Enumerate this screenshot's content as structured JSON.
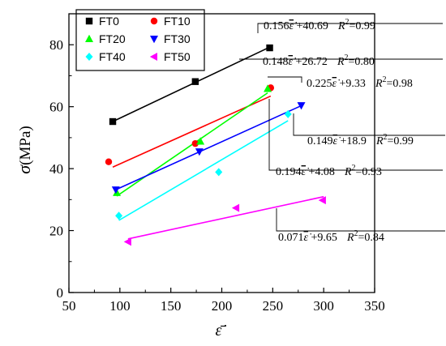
{
  "chart_data": {
    "type": "scatter",
    "xlabel": "ε̇̄",
    "ylabel_symbol": "σ",
    "ylabel_unit": "(MPa)",
    "xlim": [
      50,
      350
    ],
    "ylim": [
      0,
      90
    ],
    "xticks": [
      "50",
      "100",
      "150",
      "200",
      "250",
      "300",
      "350"
    ],
    "yticks": [
      "0",
      "20",
      "40",
      "60",
      "80"
    ],
    "grid": false,
    "legend_position": "top-left",
    "series": [
      {
        "name": "FT0",
        "color": "#000000",
        "marker": "square",
        "points": [
          [
            93,
            55.2
          ],
          [
            174,
            68.1
          ],
          [
            247,
            79.0
          ]
        ],
        "fit": {
          "slope": 0.156,
          "intercept": 40.69,
          "x_range": [
            93,
            247
          ],
          "equation": "0.156",
          "intercept_text": "+40.69",
          "r2_text": "=0.99"
        }
      },
      {
        "name": "FT10",
        "color": "#ff0000",
        "marker": "circle",
        "points": [
          [
            89,
            42.2
          ],
          [
            174,
            48.1
          ],
          [
            248,
            66.1
          ]
        ],
        "fit": {
          "slope": 0.148,
          "intercept": 26.72,
          "x_range": [
            93,
            248
          ],
          "equation": "0.148",
          "intercept_text": "+26.72",
          "r2_text": "=0.80"
        }
      },
      {
        "name": "FT20",
        "color": "#00ff00",
        "marker": "triangle-up",
        "points": [
          [
            97,
            32.2
          ],
          [
            179,
            48.8
          ],
          [
            245,
            65.8
          ]
        ],
        "fit": {
          "slope": 0.225,
          "intercept": 9.33,
          "x_range": [
            97,
            245
          ],
          "equation": "0.225",
          "intercept_text": "+9.33",
          "r2_text": "=0.98"
        }
      },
      {
        "name": "FT30",
        "color": "#0000ff",
        "marker": "triangle-down",
        "points": [
          [
            96,
            33.2
          ],
          [
            178,
            45.5
          ],
          [
            278,
            60.4
          ]
        ],
        "fit": {
          "slope": 0.149,
          "intercept": 18.9,
          "x_range": [
            96,
            278
          ],
          "equation": "0.149",
          "intercept_text": "+18.9",
          "r2_text": "=0.99"
        }
      },
      {
        "name": "FT40",
        "color": "#00ffff",
        "marker": "diamond",
        "points": [
          [
            99,
            24.8
          ],
          [
            197,
            38.9
          ],
          [
            265,
            57.6
          ]
        ],
        "fit": {
          "slope": 0.194,
          "intercept": 4.08,
          "x_range": [
            99,
            265
          ],
          "equation": "0.194",
          "intercept_text": "+4.08",
          "r2_text": "=0.93"
        }
      },
      {
        "name": "FT50",
        "color": "#ff00ff",
        "marker": "triangle-left",
        "points": [
          [
            108,
            16.4
          ],
          [
            214,
            27.3
          ],
          [
            299,
            29.8
          ]
        ],
        "fit": {
          "slope": 0.071,
          "intercept": 9.65,
          "x_range": [
            108,
            300
          ],
          "equation": "0.071",
          "intercept_text": "+9.65",
          "r2_text": "=0.84"
        }
      }
    ]
  }
}
